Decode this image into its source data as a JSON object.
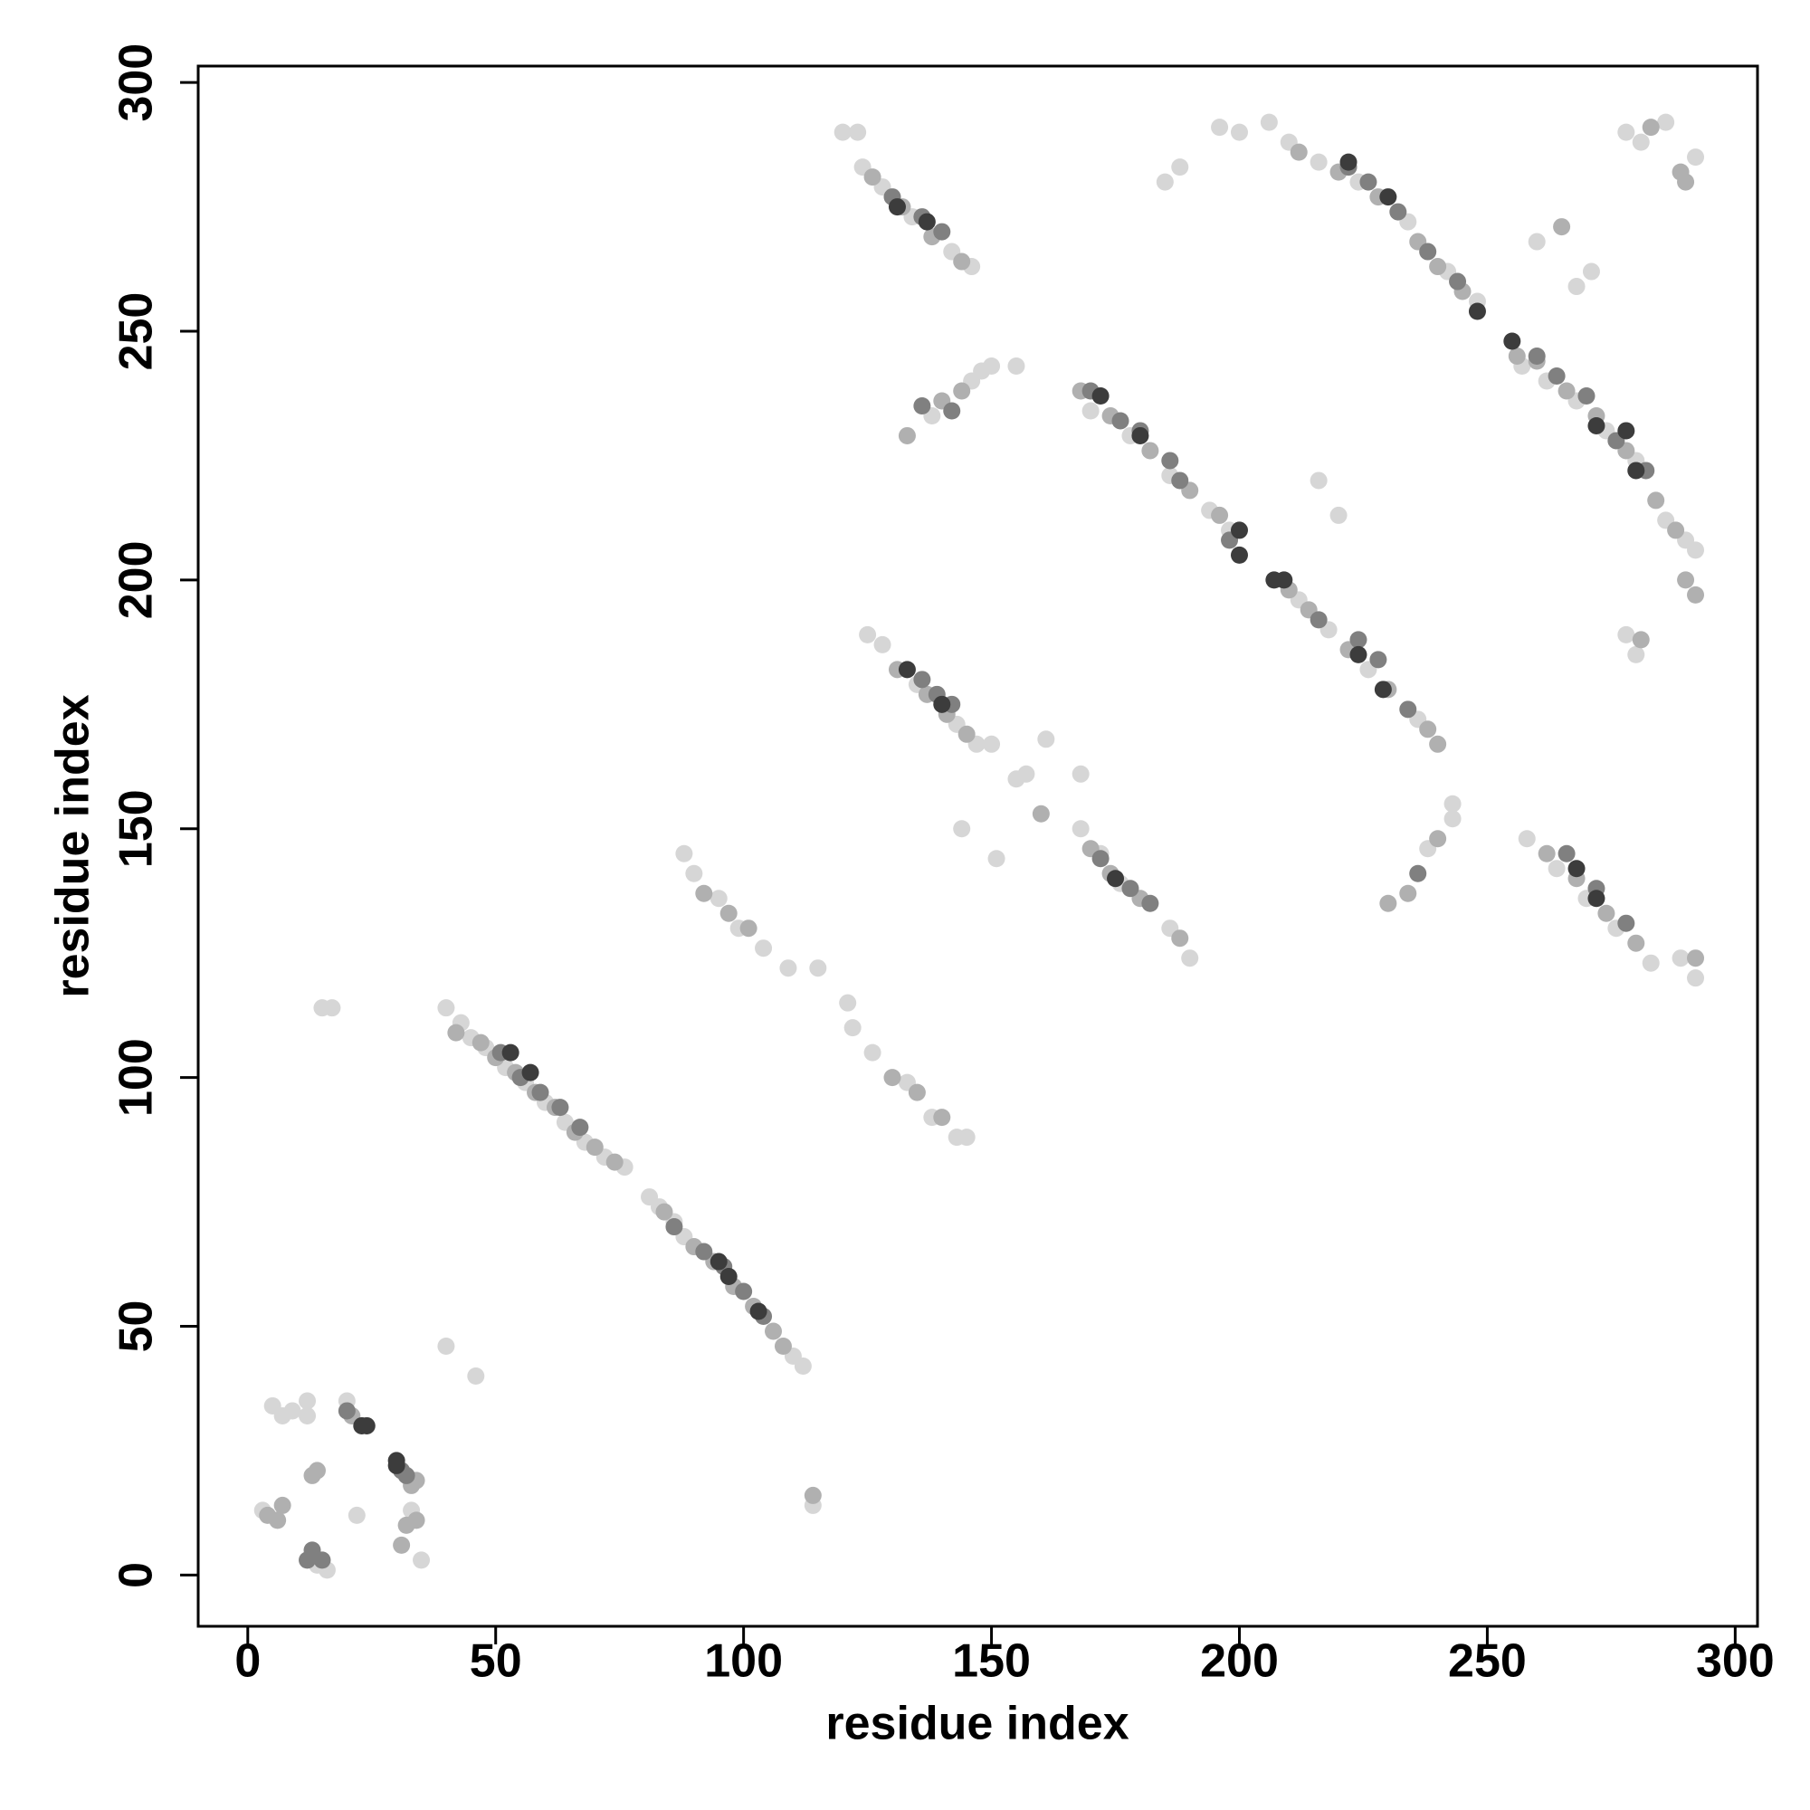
{
  "chart_data": {
    "type": "scatter",
    "x_label": "residue index",
    "y_label": "residue index",
    "xlim": [
      -10,
      304.5
    ],
    "ylim": [
      -10.3,
      303.3
    ],
    "xticks": [
      0,
      50,
      100,
      150,
      200,
      250,
      300
    ],
    "yticks": [
      0,
      50,
      100,
      150,
      200,
      250,
      300
    ],
    "grid": false,
    "series": [
      {
        "color": "#d6d6d6",
        "x": [
          3,
          5,
          7,
          9,
          12,
          14,
          16,
          12,
          20,
          22,
          33,
          35,
          15,
          17,
          40,
          46,
          114,
          40,
          43,
          45,
          48,
          52,
          56,
          60,
          64,
          68,
          72,
          76,
          81,
          83,
          86,
          88,
          110,
          112,
          88,
          90,
          95,
          99,
          104,
          109,
          115,
          121,
          122,
          126,
          133,
          138,
          143,
          145,
          125,
          128,
          135,
          143,
          147,
          150,
          155,
          157,
          161,
          168,
          144,
          151,
          168,
          172,
          176,
          186,
          190,
          138,
          146,
          148,
          150,
          155,
          120,
          123,
          124,
          128,
          134,
          142,
          146,
          170,
          178,
          186,
          194,
          198,
          212,
          218,
          226,
          236,
          210,
          216,
          224,
          234,
          242,
          248,
          185,
          188,
          196,
          200,
          206,
          260,
          268,
          271,
          216,
          220,
          238,
          243,
          243,
          257,
          262,
          268,
          274,
          280,
          286,
          290,
          258,
          264,
          270,
          276,
          283,
          278,
          281,
          286,
          292,
          292,
          289,
          292,
          278,
          280
        ],
        "values": [
          13,
          34,
          32,
          33,
          35,
          2,
          1,
          32,
          35,
          12,
          13,
          3,
          114,
          114,
          46,
          40,
          14,
          114,
          111,
          108,
          106,
          102,
          99,
          95,
          91,
          87,
          84,
          82,
          76,
          74,
          71,
          68,
          44,
          42,
          145,
          141,
          136,
          130,
          126,
          122,
          122,
          115,
          110,
          105,
          99,
          92,
          88,
          88,
          189,
          187,
          179,
          171,
          167,
          167,
          160,
          161,
          168,
          161,
          150,
          144,
          150,
          145,
          139,
          130,
          124,
          233,
          240,
          242,
          243,
          243,
          290,
          290,
          283,
          279,
          273,
          266,
          263,
          234,
          229,
          221,
          214,
          210,
          196,
          190,
          182,
          172,
          288,
          284,
          280,
          272,
          262,
          256,
          280,
          283,
          291,
          290,
          292,
          268,
          259,
          262,
          220,
          213,
          146,
          152,
          155,
          243,
          240,
          236,
          230,
          224,
          212,
          208,
          148,
          142,
          136,
          130,
          123,
          290,
          288,
          292,
          285,
          206,
          124,
          120,
          189,
          185
        ]
      },
      {
        "color": "#b0b0b0",
        "x": [
          4,
          6,
          7,
          13,
          14,
          21,
          31,
          33,
          34,
          32,
          34,
          42,
          47,
          50,
          54,
          58,
          62,
          66,
          70,
          74,
          84,
          90,
          94,
          98,
          102,
          106,
          108,
          92,
          97,
          101,
          130,
          135,
          140,
          114,
          131,
          137,
          141,
          145,
          160,
          170,
          174,
          180,
          188,
          133,
          140,
          144,
          126,
          132,
          138,
          144,
          168,
          174,
          182,
          190,
          196,
          210,
          214,
          222,
          230,
          238,
          240,
          212,
          220,
          228,
          236,
          240,
          245,
          256,
          260,
          266,
          272,
          278,
          284,
          288,
          262,
          268,
          274,
          280,
          234,
          240,
          230,
          265,
          283,
          289,
          290,
          290,
          292,
          281,
          292
        ],
        "values": [
          12,
          11,
          14,
          20,
          21,
          32,
          6,
          18,
          11,
          10,
          19,
          109,
          107,
          104,
          101,
          97,
          94,
          89,
          86,
          83,
          73,
          66,
          63,
          58,
          54,
          49,
          46,
          137,
          133,
          130,
          100,
          97,
          92,
          16,
          182,
          177,
          173,
          169,
          153,
          146,
          141,
          136,
          128,
          229,
          236,
          238,
          281,
          275,
          269,
          264,
          238,
          233,
          226,
          218,
          213,
          198,
          194,
          186,
          178,
          170,
          167,
          286,
          282,
          277,
          268,
          263,
          258,
          245,
          244,
          238,
          233,
          226,
          216,
          210,
          145,
          140,
          133,
          127,
          137,
          148,
          135,
          271,
          291,
          282,
          280,
          200,
          197,
          188,
          124
        ]
      },
      {
        "color": "#808080",
        "x": [
          13,
          12,
          15,
          20,
          31,
          32,
          51,
          55,
          59,
          63,
          67,
          86,
          92,
          96,
          100,
          104,
          136,
          139,
          142,
          172,
          178,
          182,
          136,
          142,
          130,
          136,
          140,
          170,
          176,
          180,
          186,
          188,
          198,
          216,
          224,
          228,
          234,
          222,
          226,
          232,
          238,
          244,
          260,
          264,
          270,
          276,
          282,
          266,
          272,
          278,
          236
        ],
        "values": [
          5,
          3,
          3,
          33,
          21,
          20,
          105,
          100,
          97,
          94,
          90,
          70,
          65,
          62,
          57,
          52,
          180,
          177,
          175,
          144,
          138,
          135,
          235,
          234,
          277,
          273,
          270,
          238,
          232,
          230,
          224,
          220,
          208,
          192,
          188,
          184,
          174,
          283,
          280,
          274,
          266,
          260,
          245,
          241,
          237,
          228,
          222,
          145,
          138,
          131,
          141
        ]
      },
      {
        "color": "#3c3c3c",
        "x": [
          23,
          24,
          30,
          30,
          53,
          57,
          97,
          103,
          95,
          133,
          140,
          175,
          137,
          131,
          172,
          180,
          200,
          200,
          207,
          209,
          224,
          229,
          222,
          230,
          248,
          255,
          272,
          278,
          280,
          268,
          272
        ],
        "values": [
          30,
          30,
          23,
          22,
          105,
          101,
          60,
          53,
          63,
          182,
          175,
          140,
          272,
          275,
          237,
          229,
          210,
          205,
          200,
          200,
          185,
          178,
          284,
          277,
          254,
          248,
          231,
          230,
          222,
          142,
          136
        ]
      }
    ]
  }
}
